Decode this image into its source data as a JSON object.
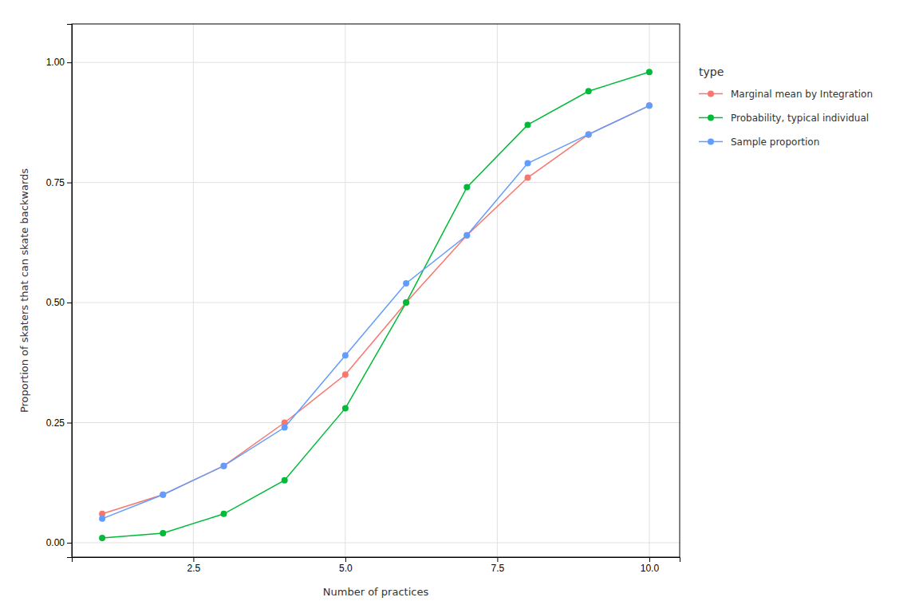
{
  "chart_data": {
    "type": "line",
    "xlabel": "Number of practices",
    "ylabel": "Proportion of skaters that can skate backwards",
    "legend_title": "type",
    "x": [
      1,
      2,
      3,
      4,
      5,
      6,
      7,
      8,
      9,
      10
    ],
    "series": [
      {
        "name": "Marginal mean by Integration",
        "color": "#F8766D",
        "marker": "circle",
        "values": [
          0.06,
          0.1,
          0.16,
          0.25,
          0.35,
          0.5,
          0.64,
          0.76,
          0.85,
          0.91
        ]
      },
      {
        "name": "Probability, typical individual",
        "color": "#00BA38",
        "marker": "circle",
        "values": [
          0.01,
          0.02,
          0.06,
          0.13,
          0.28,
          0.5,
          0.74,
          0.87,
          0.94,
          0.98
        ]
      },
      {
        "name": "Sample proportion",
        "color": "#619CFF",
        "marker": "circle",
        "values": [
          0.05,
          0.1,
          0.16,
          0.24,
          0.39,
          0.54,
          0.64,
          0.79,
          0.85,
          0.91
        ]
      }
    ],
    "xlim": [
      0.5,
      10.5
    ],
    "ylim": [
      -0.03,
      1.08
    ],
    "xticks": [
      2.5,
      {
        "value": 5.0,
        "label": "5.0"
      },
      7.5,
      {
        "value": 10.0,
        "label": "10.0"
      }
    ],
    "yticks": [
      {
        "value": 0.0,
        "label": "0.00"
      },
      0.25,
      {
        "value": 0.5,
        "label": "0.50"
      },
      0.75,
      {
        "value": 1.0,
        "label": "1.00"
      }
    ],
    "grid": true,
    "legend": "right"
  }
}
